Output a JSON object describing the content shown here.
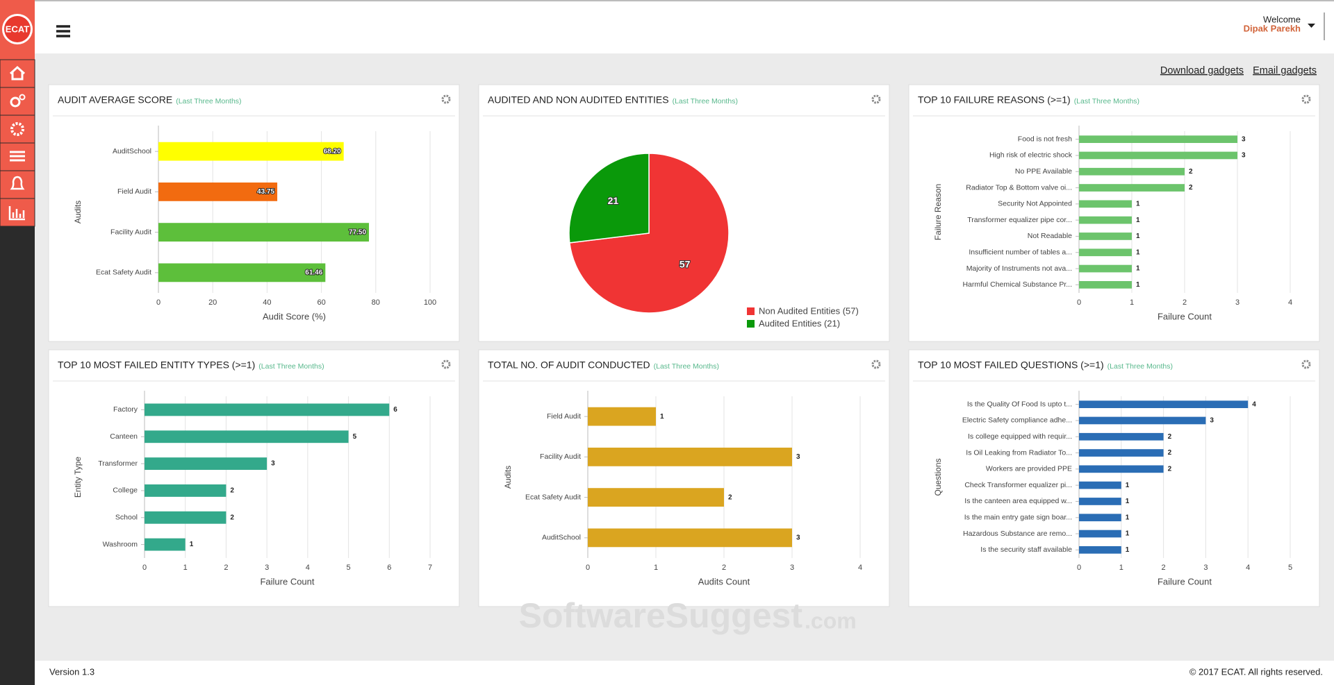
{
  "header": {
    "welcome": "Welcome",
    "user": "Dipak Parekh"
  },
  "sidebar": {
    "logo": "ECAT"
  },
  "toolbar": {
    "links": [
      "Download gadgets",
      "Email gadgets"
    ]
  },
  "chart_data": [
    {
      "type": "bar",
      "title": "AUDIT AVERAGE SCORE",
      "subtitle": "(Last Three Months)",
      "categories": [
        "AuditSchool",
        "Field Audit",
        "Facility Audit",
        "Ecat Safety Audit"
      ],
      "values": [
        68.2,
        43.75,
        77.5,
        61.46
      ],
      "value_labels": [
        "68.20",
        "43.75",
        "77.50",
        "61.46"
      ],
      "value_label_position": "inside",
      "colors": [
        "#ffff00",
        "#f26b10",
        "#5dbf3b",
        "#5dbf3b"
      ],
      "xlim": [
        0,
        100
      ],
      "xticks": [
        0,
        20,
        40,
        60,
        80,
        100
      ],
      "xlabel": "Audit Score (%)",
      "ylabel": "Audits",
      "grid": true
    },
    {
      "type": "pie",
      "title": "AUDITED AND NON AUDITED ENTITIES",
      "subtitle": "(Last Three Months)",
      "categories": [
        "Non Audited Entities (57)",
        "Audited Entities (21)"
      ],
      "values": [
        57,
        21
      ],
      "colors": [
        "#f03434",
        "#0a990a"
      ],
      "legend": "bottom-right"
    },
    {
      "type": "bar",
      "title": "TOP 10 FAILURE REASONS (>=1)",
      "subtitle": "(Last Three Months)",
      "categories": [
        "Food is not fresh",
        "High risk of electric shock",
        "No PPE Available",
        "Radiator Top & Bottom valve oi...",
        "Security Not Appointed",
        "Transformer equalizer pipe cor...",
        "Not Readable",
        "Insufficient number of tables a...",
        "Majority of Instruments not ava...",
        "Harmful Chemical Substance Pr..."
      ],
      "values": [
        3,
        3,
        2,
        2,
        1,
        1,
        1,
        1,
        1,
        1
      ],
      "value_label_position": "outside",
      "color": "#6cc46c",
      "xlim": [
        0,
        4
      ],
      "xticks": [
        0,
        1,
        2,
        3,
        4
      ],
      "xlabel": "Failure Count",
      "ylabel": "Failure Reason",
      "grid": true
    },
    {
      "type": "bar",
      "title": "TOP 10 MOST FAILED ENTITY TYPES (>=1)",
      "subtitle": "(Last Three Months)",
      "categories": [
        "Factory",
        "Canteen",
        "Transformer",
        "College",
        "School",
        "Washroom"
      ],
      "values": [
        6,
        5,
        3,
        2,
        2,
        1
      ],
      "value_label_position": "outside",
      "color": "#33a98b",
      "xlim": [
        0,
        7
      ],
      "xticks": [
        0,
        1,
        2,
        3,
        4,
        5,
        6,
        7
      ],
      "xlabel": "Failure Count",
      "ylabel": "Entity Type",
      "grid": true
    },
    {
      "type": "bar",
      "title": "TOTAL NO. OF AUDIT CONDUCTED",
      "subtitle": "(Last Three Months)",
      "categories": [
        "Field Audit",
        "Facility Audit",
        "Ecat Safety Audit",
        "AuditSchool"
      ],
      "values": [
        1,
        3,
        2,
        3
      ],
      "value_label_position": "outside",
      "color": "#daa520",
      "xlim": [
        0,
        4
      ],
      "xticks": [
        0,
        1,
        2,
        3,
        4
      ],
      "xlabel": "Audits Count",
      "ylabel": "Audits",
      "grid": true
    },
    {
      "type": "bar",
      "title": "TOP 10 MOST FAILED QUESTIONS (>=1)",
      "subtitle": "(Last Three Months)",
      "categories": [
        "Is the Quality Of Food Is upto t...",
        "Electric Safety compliance adhe...",
        "Is college equipped with requir...",
        "Is Oil Leaking from Radiator To...",
        "Workers are provided PPE",
        "Check Transformer equalizer pi...",
        "Is the canteen area equipped w...",
        "Is the main entry gate sign boar...",
        "Hazardous Substance are remo...",
        "Is the security staff available"
      ],
      "values": [
        4,
        3,
        2,
        2,
        2,
        1,
        1,
        1,
        1,
        1
      ],
      "value_label_position": "outside",
      "color": "#2a6db5",
      "xlim": [
        0,
        5
      ],
      "xticks": [
        0,
        1,
        2,
        3,
        4,
        5
      ],
      "xlabel": "Failure Count",
      "ylabel": "Questions",
      "grid": true
    }
  ],
  "watermark": {
    "name": "SoftwareSuggest",
    "suffix": ".com"
  },
  "footer": {
    "version": "Version 1.3",
    "copyright": "© 2017 ECAT. All rights reserved."
  }
}
